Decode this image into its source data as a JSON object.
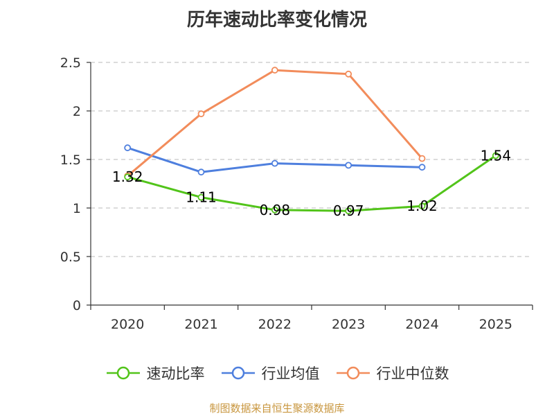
{
  "chart_data": {
    "type": "line",
    "title": "历年速动比率变化情况",
    "categories": [
      "2020",
      "2021",
      "2022",
      "2023",
      "2024",
      "2025"
    ],
    "ylim": [
      0,
      2.5
    ],
    "yticks": [
      0,
      0.5,
      1,
      1.5,
      2,
      2.5
    ],
    "ytick_labels": [
      "0",
      "0.5",
      "1",
      "1.5",
      "2",
      "2.5"
    ],
    "grid": true,
    "legend_position": "bottom",
    "series": [
      {
        "name": "速动比率",
        "color": "#52c41a",
        "values": [
          1.32,
          1.11,
          0.98,
          0.97,
          1.02,
          1.54
        ],
        "labels": [
          "1.32",
          "1.11",
          "0.98",
          "0.97",
          "1.02",
          "1.54"
        ]
      },
      {
        "name": "行业均值",
        "color": "#4e7fde",
        "values": [
          1.62,
          1.37,
          1.46,
          1.44,
          1.42,
          null
        ]
      },
      {
        "name": "行业中位数",
        "color": "#f28c5b",
        "values": [
          1.33,
          1.97,
          2.42,
          2.38,
          1.51,
          null
        ]
      }
    ]
  },
  "source": "制图数据来自恒生聚源数据库"
}
